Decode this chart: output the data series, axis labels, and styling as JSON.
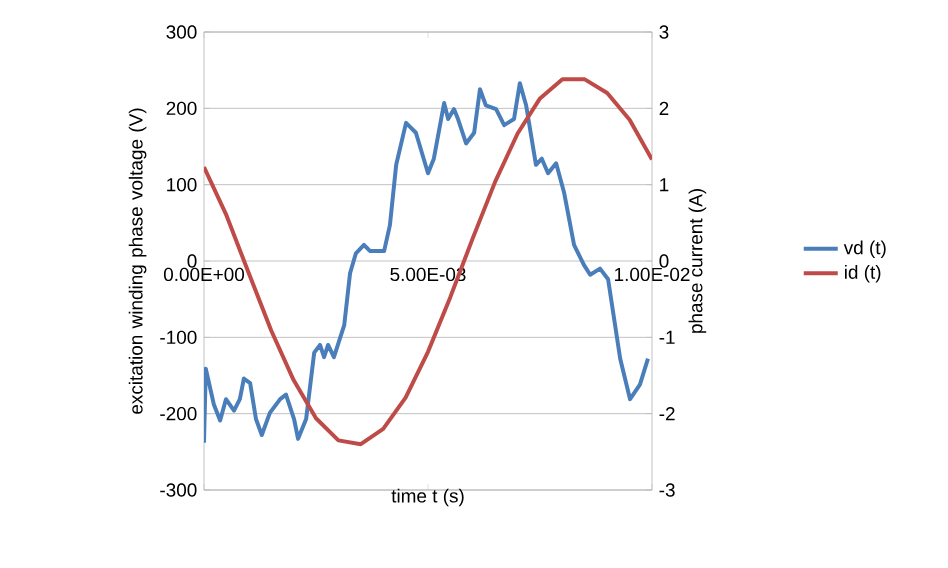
{
  "chart_data": {
    "type": "line",
    "xlabel": "time t (s)",
    "ylabel": "excitation winding phase voltage (V)",
    "y2label": "phase current (A)",
    "xlim": [
      0,
      0.01
    ],
    "xticks": [
      {
        "value": 0,
        "label": "0.00E+00"
      },
      {
        "value": 0.005,
        "label": "5.00E-03"
      },
      {
        "value": 0.01,
        "label": "1.00E-02"
      }
    ],
    "ylim": [
      -300,
      300
    ],
    "yticks": [
      -300,
      -200,
      -100,
      0,
      100,
      200,
      300
    ],
    "y2lim": [
      -3,
      3
    ],
    "y2ticks": [
      -3,
      -2,
      -1,
      0,
      1,
      2,
      3
    ],
    "grid": "y",
    "legend": "right",
    "series": [
      {
        "name": "vd (t)",
        "color": "#4a7ebb",
        "x": [
          0,
          4e-05,
          0.00022,
          0.00036,
          0.00049,
          0.00067,
          0.0008,
          0.00089,
          0.00103,
          0.00116,
          0.00129,
          0.00147,
          0.0017,
          0.00183,
          0.00201,
          0.0021,
          0.00228,
          0.00246,
          0.00259,
          0.00268,
          0.00277,
          0.0029,
          0.00313,
          0.00326,
          0.00339,
          0.00357,
          0.00371,
          0.00402,
          0.00415,
          0.00429,
          0.00451,
          0.00473,
          0.005,
          0.00513,
          0.00536,
          0.00545,
          0.00558,
          0.00567,
          0.00585,
          0.00603,
          0.00616,
          0.00629,
          0.00652,
          0.0067,
          0.00692,
          0.00705,
          0.00719,
          0.00741,
          0.00754,
          0.00768,
          0.00786,
          0.00804,
          0.00826,
          0.00848,
          0.00862,
          0.00884,
          0.00902,
          0.00929,
          0.00951,
          0.00973,
          0.00991
        ],
        "values": [
          -238,
          -141,
          -188,
          -209,
          -181,
          -196,
          -181,
          -154,
          -160,
          -207,
          -228,
          -199,
          -181,
          -175,
          -207,
          -233,
          -207,
          -120,
          -110,
          -126,
          -110,
          -126,
          -84,
          -16,
          10,
          21,
          13,
          13,
          47,
          126,
          181,
          168,
          115,
          134,
          207,
          186,
          199,
          186,
          154,
          168,
          225,
          204,
          199,
          178,
          186,
          233,
          204,
          126,
          134,
          115,
          128,
          89,
          21,
          -5,
          -18,
          -10,
          -24,
          -128,
          -181,
          -162,
          -128
        ]
      },
      {
        "name": "id (t)",
        "color": "#be4b48",
        "axis": "y2",
        "x": [
          0,
          0.0005,
          0.001,
          0.0015,
          0.002,
          0.0025,
          0.003,
          0.0035,
          0.004,
          0.0045,
          0.005,
          0.0055,
          0.006,
          0.0065,
          0.007,
          0.0075,
          0.008,
          0.0085,
          0.009,
          0.0095,
          0.01
        ],
        "values": [
          1.23,
          0.6,
          -0.16,
          -0.91,
          -1.56,
          -2.06,
          -2.35,
          -2.4,
          -2.2,
          -1.79,
          -1.19,
          -0.47,
          0.3,
          1.04,
          1.67,
          2.13,
          2.38,
          2.38,
          2.2,
          1.85,
          1.33
        ]
      }
    ]
  }
}
